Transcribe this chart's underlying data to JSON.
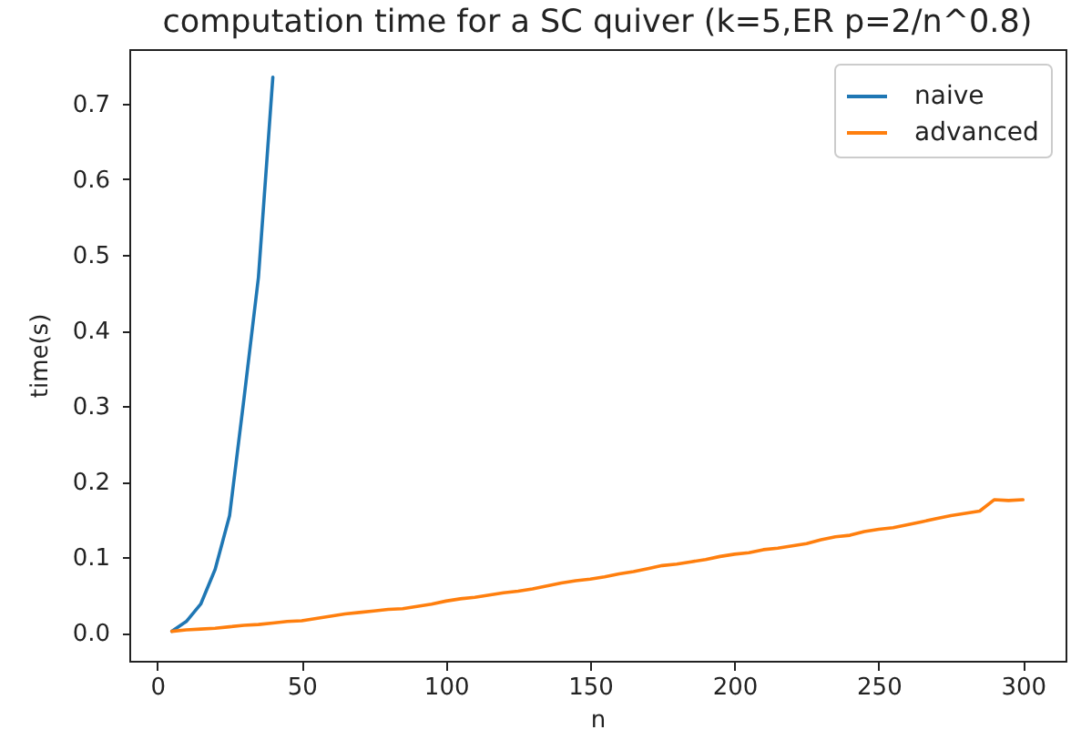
{
  "chart_data": {
    "type": "line",
    "title": "computation time for a SC quiver (k=5,ER p=2/n^0.8)",
    "xlabel": "n",
    "ylabel": "time(s)",
    "series": [
      {
        "name": "naive",
        "color": "#1f77b4",
        "x": [
          5,
          10,
          15,
          20,
          25,
          30,
          35,
          40
        ],
        "values": [
          0.002,
          0.015,
          0.038,
          0.084,
          0.155,
          0.31,
          0.47,
          0.735
        ]
      },
      {
        "name": "advanced",
        "color": "#ff7f0e",
        "x": [
          5,
          10,
          15,
          20,
          25,
          30,
          35,
          40,
          45,
          50,
          55,
          60,
          65,
          70,
          75,
          80,
          85,
          90,
          95,
          100,
          105,
          110,
          115,
          120,
          125,
          130,
          135,
          140,
          145,
          150,
          155,
          160,
          165,
          170,
          175,
          180,
          185,
          190,
          195,
          200,
          205,
          210,
          215,
          220,
          225,
          230,
          235,
          240,
          245,
          250,
          255,
          260,
          265,
          270,
          275,
          280,
          285,
          290,
          295,
          300
        ],
        "values": [
          0.002,
          0.004,
          0.005,
          0.006,
          0.008,
          0.01,
          0.011,
          0.013,
          0.015,
          0.016,
          0.019,
          0.022,
          0.025,
          0.027,
          0.029,
          0.031,
          0.032,
          0.035,
          0.038,
          0.042,
          0.045,
          0.047,
          0.05,
          0.053,
          0.055,
          0.058,
          0.062,
          0.066,
          0.069,
          0.071,
          0.074,
          0.078,
          0.081,
          0.085,
          0.089,
          0.091,
          0.094,
          0.097,
          0.101,
          0.104,
          0.106,
          0.11,
          0.112,
          0.115,
          0.118,
          0.123,
          0.127,
          0.129,
          0.134,
          0.137,
          0.139,
          0.143,
          0.147,
          0.151,
          0.155,
          0.158,
          0.161,
          0.176,
          0.175,
          0.176
        ]
      }
    ],
    "xlim": [
      -9.75,
      314.75
    ],
    "xticks": [
      0,
      50,
      100,
      150,
      200,
      250,
      300
    ],
    "ylim": [
      -0.037,
      0.772
    ],
    "yticks": [
      {
        "value": 0,
        "label": "0.0"
      },
      0.1,
      0.2,
      0.3,
      0.4,
      0.5,
      0.6,
      0.7
    ],
    "grid": false,
    "legend": "top right"
  }
}
